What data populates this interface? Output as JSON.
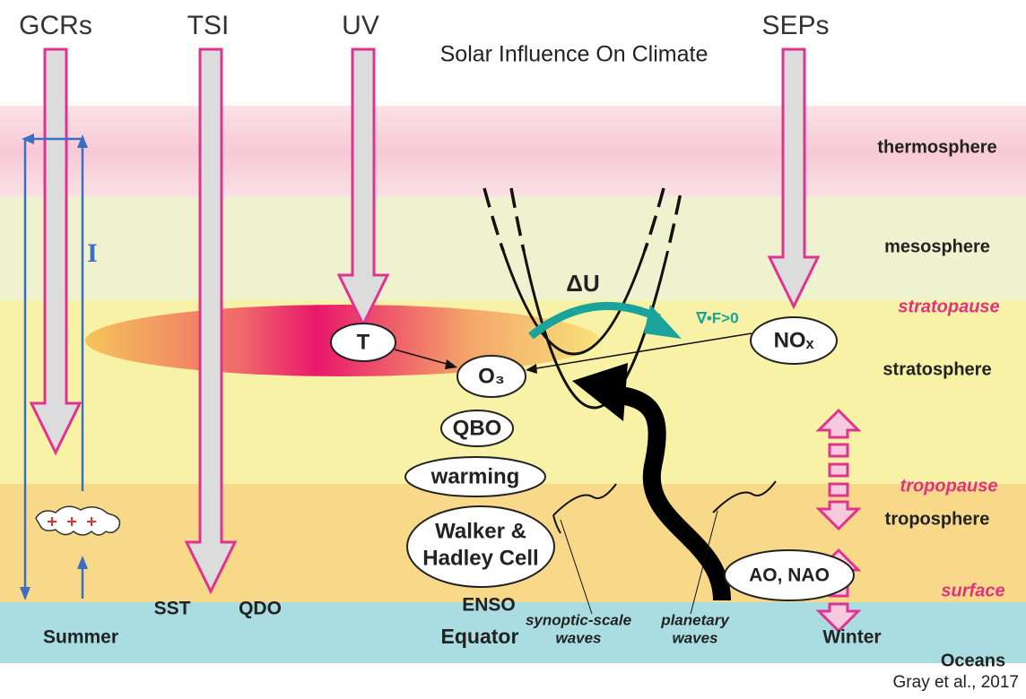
{
  "title": "Solar Influence On Climate",
  "sources": [
    "GCRs",
    "TSI",
    "UV",
    "SEPs"
  ],
  "layers": [
    "thermosphere",
    "mesosphere",
    "stratopause",
    "stratosphere",
    "tropopause",
    "troposphere",
    "surface",
    "Oceans"
  ],
  "nodes": [
    "T",
    "O₃",
    "QBO",
    "warming",
    "NOₓ",
    "AO, NAO"
  ],
  "walker_lines": [
    "Walker &",
    "Hadley Cell"
  ],
  "labels": [
    "ΔU",
    "∇•F>0",
    "I",
    "SST",
    "QDO",
    "ENSO",
    "Equator",
    "Summer",
    "Winter"
  ],
  "waves": [
    [
      "synoptic-scale",
      "waves"
    ],
    [
      "planetary",
      "waves"
    ]
  ],
  "credit": "Gray et al., 2017"
}
